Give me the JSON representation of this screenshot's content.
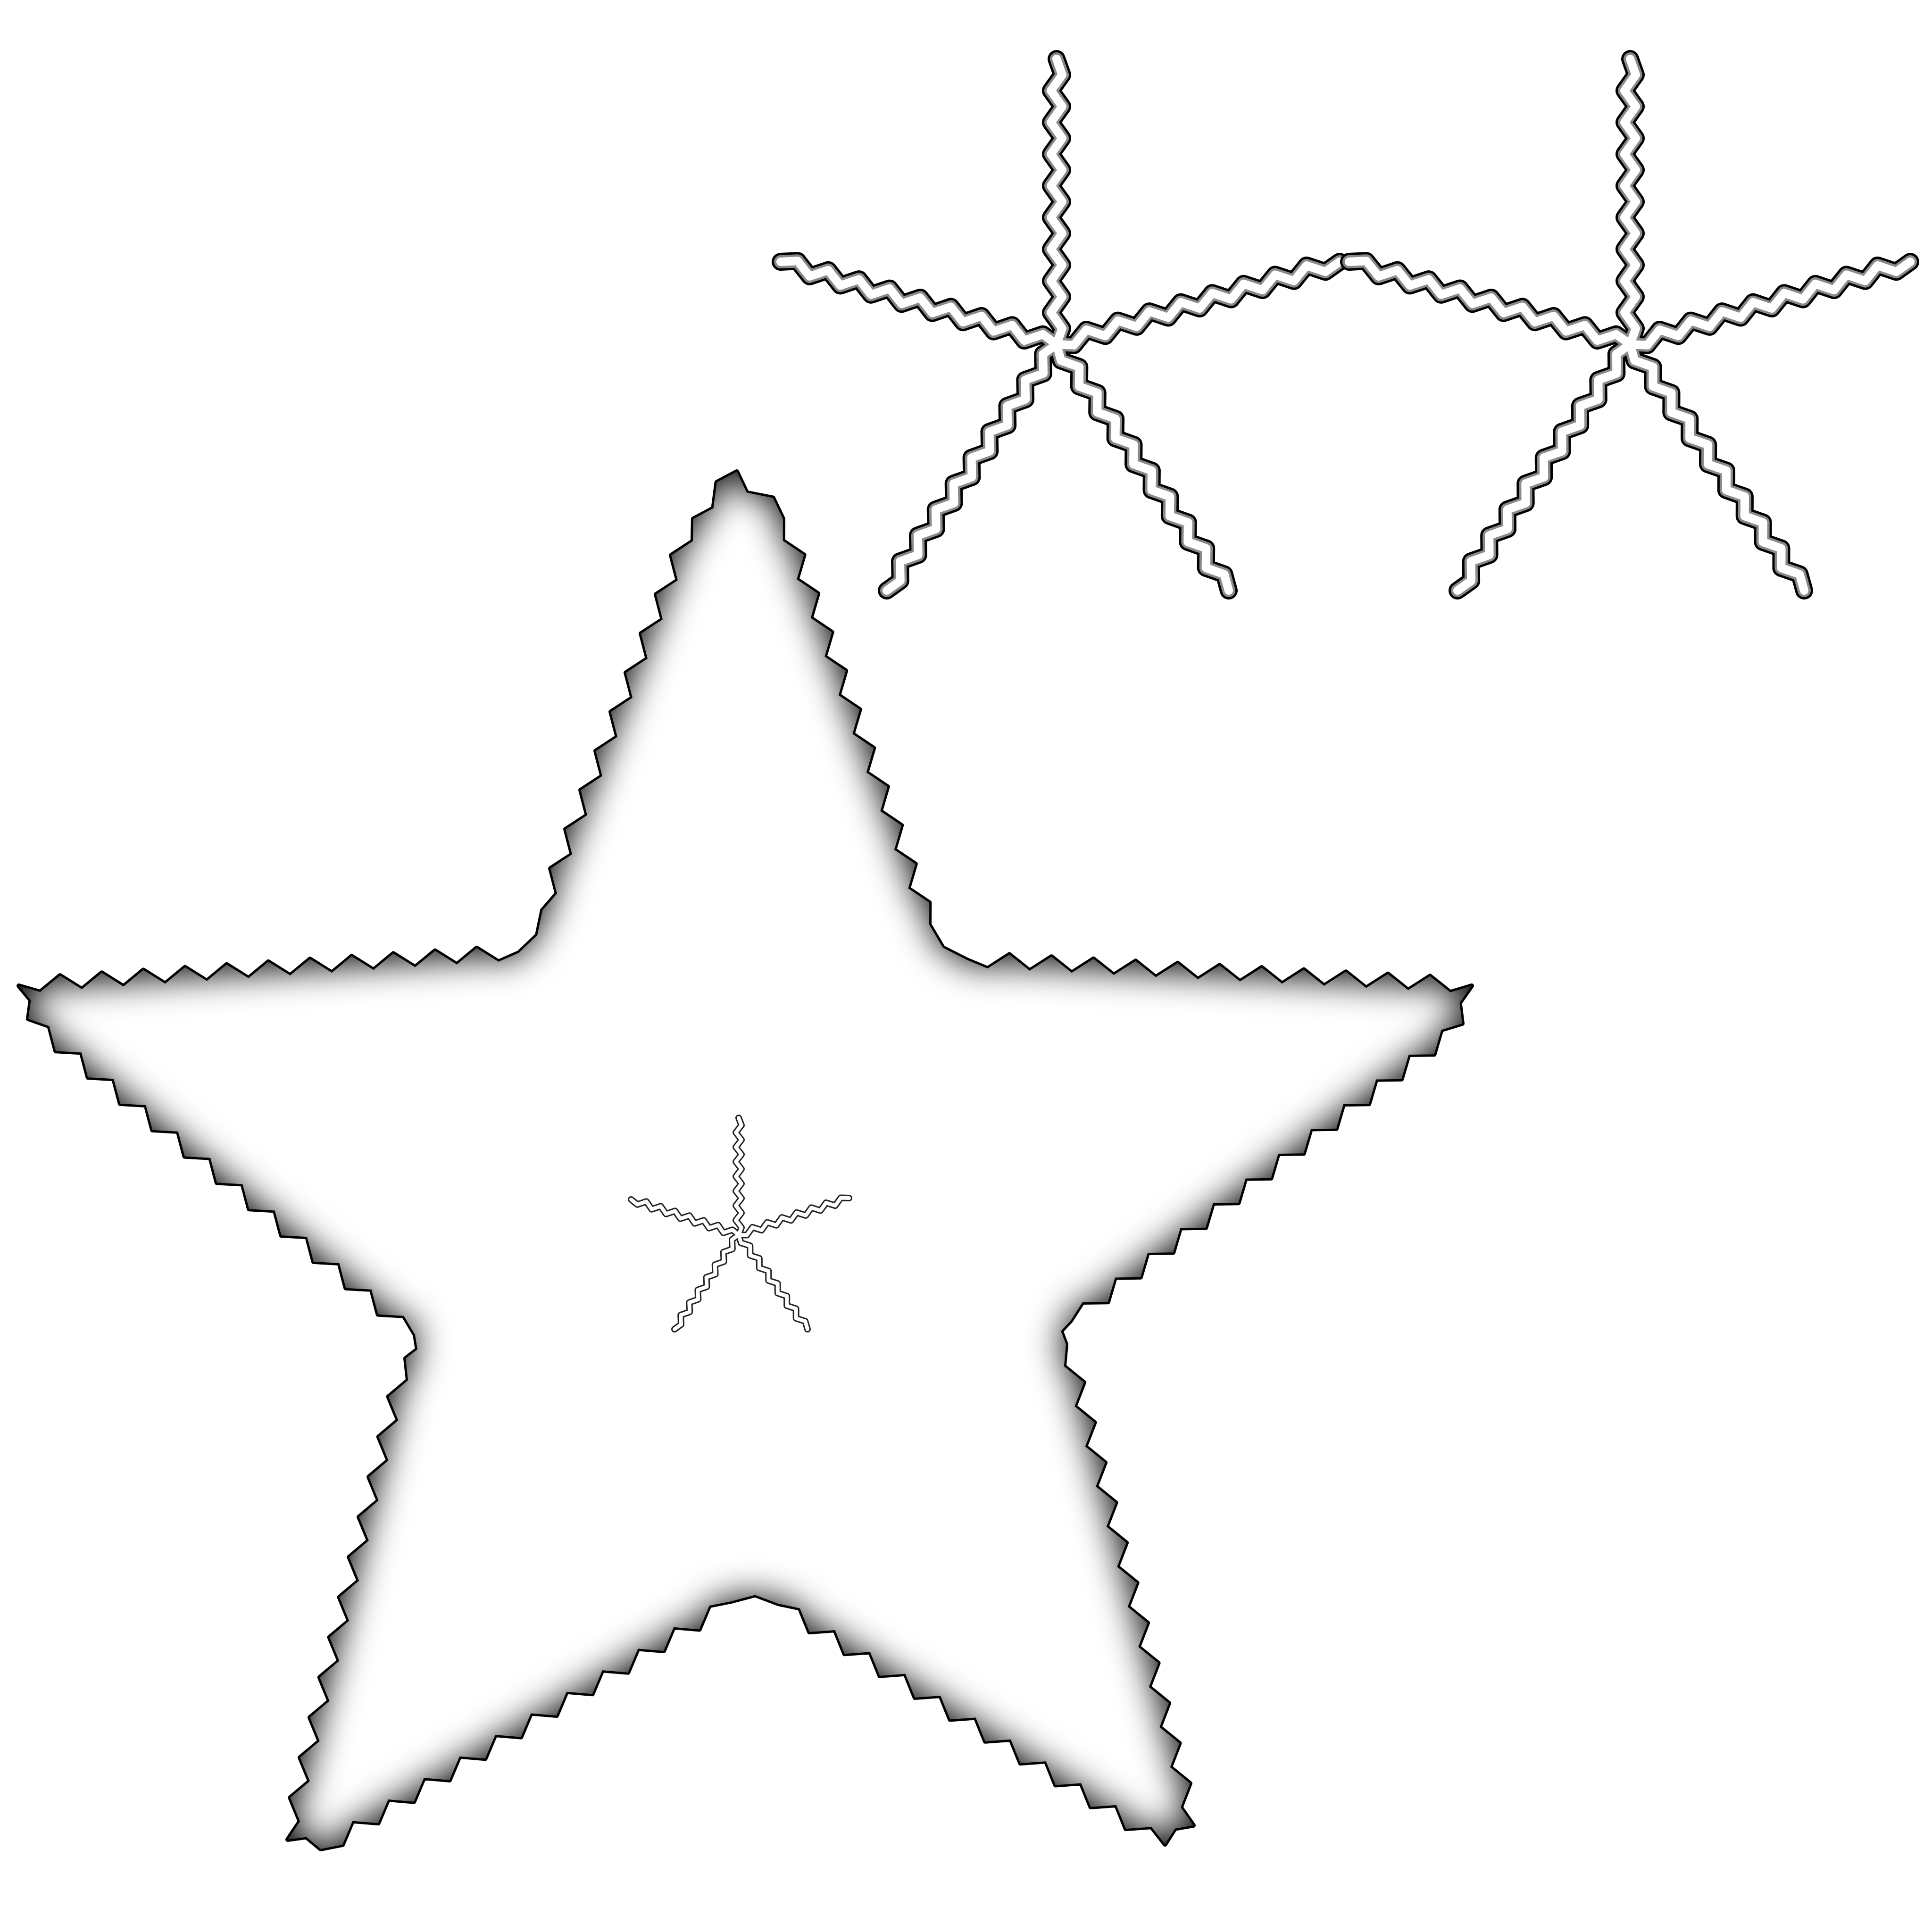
{
  "colors": {
    "background": "#ffffff",
    "edge": "#000000",
    "fill": "#ffffff"
  },
  "shapes": [
    {
      "kind": "large-star",
      "icon": "star-icon"
    },
    {
      "kind": "small-asterisk",
      "icon": "asterisk-icon"
    },
    {
      "kind": "asterisk",
      "icon": "asterisk-icon"
    },
    {
      "kind": "asterisk",
      "icon": "asterisk-icon"
    }
  ]
}
